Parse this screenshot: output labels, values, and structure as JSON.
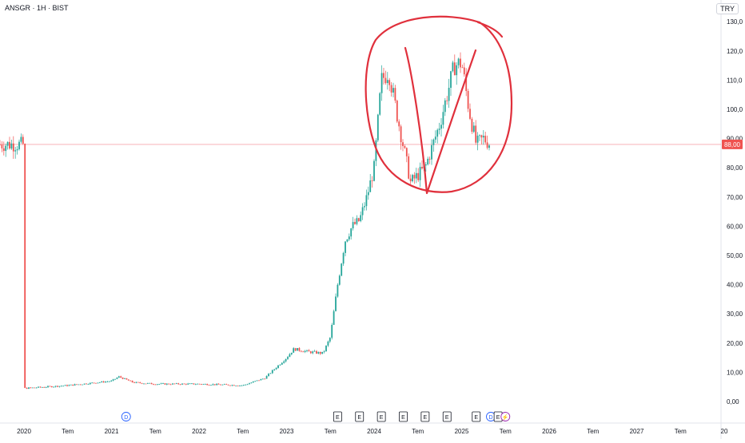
{
  "ticker": "ANSGR · 1H · BIST",
  "currency": "TRY",
  "last_price_label": "88,00",
  "colors": {
    "up": "#26a69a",
    "down": "#ef5350",
    "annotation": "#e0303c",
    "price_line": "#f7a8ad",
    "grid": "#f0f3fa",
    "axis_text": "#131722"
  },
  "chart_data": {
    "type": "candlestick",
    "y_ticks": [
      "0,00",
      "10,00",
      "20,00",
      "30,00",
      "40,00",
      "50,00",
      "60,00",
      "70,00",
      "80,00",
      "90,00",
      "100,0",
      "110,0",
      "120,0",
      "130,0"
    ],
    "y_tick_values": [
      0,
      10,
      20,
      30,
      40,
      50,
      60,
      70,
      80,
      90,
      100,
      110,
      120,
      130
    ],
    "x_ticks": [
      "2020",
      "Tem",
      "2021",
      "Tem",
      "2022",
      "Tem",
      "2023",
      "Tem",
      "2024",
      "Tem",
      "2025",
      "Tem",
      "2026",
      "Tem",
      "2027",
      "Tem",
      "20"
    ],
    "ylim": [
      0,
      130
    ],
    "last_price": 88.0,
    "series": [
      {
        "type": "close_path",
        "points": [
          [
            "2020-01",
            4.5
          ],
          [
            "2020-07",
            5.5
          ],
          [
            "2021-01",
            7.0
          ],
          [
            "2021-02",
            8.5
          ],
          [
            "2021-04",
            6.5
          ],
          [
            "2021-07",
            6.0
          ],
          [
            "2022-01",
            6.0
          ],
          [
            "2022-07",
            5.5
          ],
          [
            "2022-10",
            8.0
          ],
          [
            "2023-01",
            15.0
          ],
          [
            "2023-02",
            18.0
          ],
          [
            "2023-04",
            17.0
          ],
          [
            "2023-06",
            16.5
          ],
          [
            "2023-07",
            22.0
          ],
          [
            "2023-08",
            40.0
          ],
          [
            "2023-09",
            55.0
          ],
          [
            "2023-10",
            60.0
          ],
          [
            "2023-11",
            62.0
          ],
          [
            "2023-12",
            70.0
          ],
          [
            "2024-01",
            80.0
          ],
          [
            "2024-02",
            110.0
          ],
          [
            "2024-03",
            113.0
          ],
          [
            "2024-04",
            100.0
          ],
          [
            "2024-06",
            75.0
          ],
          [
            "2024-08",
            80.0
          ],
          [
            "2024-10",
            95.0
          ],
          [
            "2024-12",
            115.0
          ],
          [
            "2025-01",
            116.0
          ],
          [
            "2025-02",
            100.0
          ],
          [
            "2025-03",
            88.0
          ],
          [
            "2025-04",
            90.0
          ],
          [
            "2025-05",
            88.0
          ]
        ]
      }
    ],
    "event_markers": [
      {
        "label": "D",
        "date": "2021-03",
        "style": "circle-blue"
      },
      {
        "label": "E",
        "date": "2023-08",
        "style": "box"
      },
      {
        "label": "E",
        "date": "2023-11",
        "style": "box"
      },
      {
        "label": "E",
        "date": "2024-02",
        "style": "box"
      },
      {
        "label": "E",
        "date": "2024-05",
        "style": "box"
      },
      {
        "label": "E",
        "date": "2024-08",
        "style": "box"
      },
      {
        "label": "E",
        "date": "2024-11",
        "style": "box"
      },
      {
        "label": "E",
        "date": "2025-03",
        "style": "box"
      },
      {
        "label": "D",
        "date": "2025-05",
        "style": "circle-blue"
      },
      {
        "label": "E",
        "date": "2025-06",
        "style": "box"
      },
      {
        "label": "⚡",
        "date": "2025-07",
        "style": "circle-purple"
      }
    ],
    "annotations": [
      {
        "type": "ellipse-marker",
        "color": "#e0303c"
      },
      {
        "type": "v-lines",
        "color": "#e0303c"
      }
    ],
    "grid": false
  }
}
